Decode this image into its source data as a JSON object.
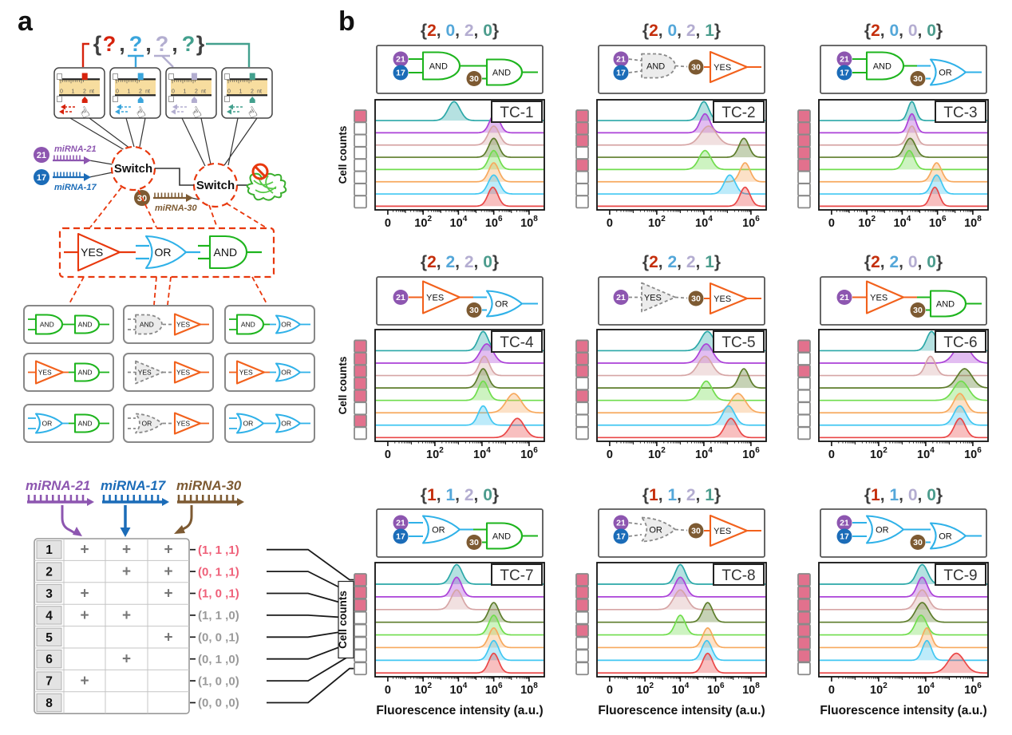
{
  "figure": {
    "panel_a_label": "a",
    "panel_b_label": "b"
  },
  "panel_a": {
    "placeholder_code": {
      "open": "{",
      "close": "}",
      "separator": ",",
      "items": [
        {
          "char": "?",
          "color": "#d6220c"
        },
        {
          "char": "?",
          "color": "#3aa5dc"
        },
        {
          "char": "?",
          "color": "#b3aed0"
        },
        {
          "char": "?",
          "color": "#43a08e"
        }
      ]
    },
    "rulers": {
      "numbers": [
        "0",
        "1",
        "2",
        "nt"
      ],
      "slider_colors": [
        "#d6220c",
        "#3aa5dc",
        "#b3aed0",
        "#43a08e"
      ],
      "slider_fracs": [
        0.7,
        0.7,
        0.64,
        0.7
      ],
      "hand_glyph": "☝",
      "band_color": "#f7dd9f"
    },
    "switch_label": "Switch",
    "mirna_inputs": [
      {
        "badge": "21",
        "label": "miRNA-21",
        "color": "#8d56b0"
      },
      {
        "badge": "17",
        "label": "miRNA-17",
        "color": "#1b6cb8"
      },
      {
        "badge": "30",
        "label": "miRNA-30",
        "color": "#7d5a32"
      }
    ],
    "gate_palette": {
      "YES": {
        "label": "YES",
        "color": "#e8380d"
      },
      "OR": {
        "label": "OR",
        "color": "#2fb1e8"
      },
      "AND": {
        "label": "AND",
        "color": "#1db41d"
      }
    },
    "small_gate_colors": {
      "YES": "#f2611c",
      "OR": "#2fb1e8",
      "AND": "#1db41d",
      "inactive": "#8a8a8a"
    },
    "combos": [
      {
        "g1": "AND",
        "g1_active": true,
        "g2": "AND"
      },
      {
        "g1": "AND",
        "g1_active": false,
        "g2": "YES"
      },
      {
        "g1": "AND",
        "g1_active": true,
        "g2": "OR"
      },
      {
        "g1": "YES",
        "g1_active": true,
        "g2": "AND"
      },
      {
        "g1": "YES",
        "g1_active": false,
        "g2": "YES"
      },
      {
        "g1": "YES",
        "g1_active": true,
        "g2": "OR"
      },
      {
        "g1": "OR",
        "g1_active": true,
        "g2": "AND"
      },
      {
        "g1": "OR",
        "g1_active": false,
        "g2": "YES"
      },
      {
        "g1": "OR",
        "g1_active": true,
        "g2": "OR"
      }
    ],
    "truth_table": {
      "col_headers": [
        "miRNA-21",
        "miRNA-17",
        "miRNA-30"
      ],
      "plus_symbol": "+",
      "highlight_color": "#ef6079",
      "normal_color": "#9a9a9a",
      "rows": [
        {
          "n": "1",
          "plus": [
            true,
            true,
            true
          ],
          "tuple": "(1, 1 ,1)",
          "highlight": true
        },
        {
          "n": "2",
          "plus": [
            false,
            true,
            true
          ],
          "tuple": "(0, 1 ,1)",
          "highlight": true
        },
        {
          "n": "3",
          "plus": [
            true,
            false,
            true
          ],
          "tuple": "(1, 0 ,1)",
          "highlight": true
        },
        {
          "n": "4",
          "plus": [
            true,
            true,
            false
          ],
          "tuple": "(1, 1 ,0)",
          "highlight": false
        },
        {
          "n": "5",
          "plus": [
            false,
            false,
            true
          ],
          "tuple": "(0, 0 ,1)",
          "highlight": false
        },
        {
          "n": "6",
          "plus": [
            false,
            true,
            false
          ],
          "tuple": "(0, 1 ,0)",
          "highlight": false
        },
        {
          "n": "7",
          "plus": [
            true,
            false,
            false
          ],
          "tuple": "(1, 0 ,0)",
          "highlight": false
        },
        {
          "n": "8",
          "plus": [
            false,
            false,
            false
          ],
          "tuple": "(0, 0 ,0)",
          "highlight": false
        }
      ]
    }
  },
  "chart_data": {
    "type": "ridgeline",
    "xlabel": "Fluorescence intensity (a.u.)",
    "ylabel": "Cell counts",
    "input_states": [
      "(1, 1 ,1)",
      "(0, 1 ,1)",
      "(1, 0 ,1)",
      "(1, 1 ,0)",
      "(0, 0 ,1)",
      "(0, 1 ,0)",
      "(1, 0 ,0)",
      "(0, 0 ,0)"
    ],
    "row_colors": [
      "#2ba8a8",
      "#ab42d8",
      "#d6a5a5",
      "#5d7d2b",
      "#70dd4d",
      "#f7a95e",
      "#41c7f2",
      "#ea4747"
    ],
    "code_digit_colors": [
      "#c42e0c",
      "#54a7d9",
      "#b4add1",
      "#4c9c8d"
    ],
    "code_punct_color": "#3f3f3f",
    "checkbox_on_color": "#e2718d",
    "panels": [
      {
        "id": "TC-1",
        "code": [
          "2",
          "0",
          "2",
          "0"
        ],
        "circuit": {
          "g1": "AND",
          "g1_active": true,
          "g1_inputs": [
            "21",
            "17"
          ],
          "g2": "AND"
        },
        "ticks": [
          "0",
          "10^2",
          "10^4",
          "10^6",
          "10^8"
        ],
        "peaks_exp": [
          3.75,
          6.05,
          6.0,
          6.0,
          6.0,
          6.0,
          6.0,
          5.95
        ],
        "widths": [
          1.2,
          1,
          1.1,
          1,
          1,
          1,
          1.1,
          1
        ],
        "on": [
          true,
          false,
          false,
          false,
          false,
          false,
          false,
          false
        ]
      },
      {
        "id": "TC-2",
        "code": [
          "2",
          "0",
          "2",
          "1"
        ],
        "circuit": {
          "g1": "AND",
          "g1_active": false,
          "g1_inputs": [
            "21",
            "17"
          ],
          "g2": "YES"
        },
        "ticks": [
          "0",
          "10^2",
          "10^4",
          "10^6"
        ],
        "peaks_exp": [
          4.0,
          4.05,
          4.2,
          5.7,
          4.05,
          5.75,
          5.1,
          5.75
        ],
        "widths": [
          1,
          1,
          1.6,
          1,
          1.2,
          1,
          1.1,
          1
        ],
        "on": [
          true,
          true,
          true,
          false,
          true,
          false,
          false,
          false
        ]
      },
      {
        "id": "TC-3",
        "code": [
          "2",
          "0",
          "0",
          "0"
        ],
        "circuit": {
          "g1": "AND",
          "g1_active": true,
          "g1_inputs": [
            "21",
            "17"
          ],
          "g2": "OR"
        },
        "ticks": [
          "0",
          "10^2",
          "10^4",
          "10^6",
          "10^8"
        ],
        "peaks_exp": [
          4.55,
          4.55,
          4.55,
          4.45,
          4.4,
          5.95,
          5.95,
          5.85
        ],
        "widths": [
          0.8,
          0.8,
          0.9,
          1.1,
          1,
          1,
          1,
          0.9
        ],
        "on": [
          true,
          true,
          true,
          true,
          true,
          false,
          false,
          false
        ]
      },
      {
        "id": "TC-4",
        "code": [
          "2",
          "2",
          "2",
          "0"
        ],
        "circuit": {
          "g1": "YES",
          "g1_active": true,
          "g1_inputs": [
            "21"
          ],
          "g2": "OR"
        },
        "ticks": [
          "0",
          "10^2",
          "10^4",
          "10^6"
        ],
        "peaks_exp": [
          4.05,
          4.2,
          4.1,
          4.05,
          4.05,
          5.35,
          4.05,
          5.5
        ],
        "widths": [
          1,
          1.3,
          1,
          1,
          1,
          1.5,
          1,
          1.4
        ],
        "on": [
          true,
          true,
          true,
          true,
          true,
          false,
          true,
          false
        ]
      },
      {
        "id": "TC-5",
        "code": [
          "2",
          "2",
          "2",
          "1"
        ],
        "circuit": {
          "g1": "YES",
          "g1_active": false,
          "g1_inputs": [
            "21"
          ],
          "g2": "YES"
        },
        "ticks": [
          "0",
          "10^2",
          "10^4",
          "10^6"
        ],
        "peaks_exp": [
          4.15,
          4.1,
          4.05,
          5.7,
          4.1,
          5.45,
          5.05,
          5.15
        ],
        "widths": [
          1.3,
          1.3,
          1.4,
          1,
          1.2,
          1.5,
          1.2,
          1.2
        ],
        "on": [
          true,
          true,
          true,
          false,
          true,
          false,
          false,
          false
        ]
      },
      {
        "id": "TC-6",
        "code": [
          "2",
          "2",
          "0",
          "0"
        ],
        "circuit": {
          "g1": "YES",
          "g1_active": true,
          "g1_inputs": [
            "21"
          ],
          "g2": "AND"
        },
        "ticks": [
          "0",
          "10^2",
          "10^4",
          "10^6"
        ],
        "peaks_exp": [
          4.25,
          5.55,
          4.2,
          5.65,
          5.5,
          5.45,
          5.45,
          5.45
        ],
        "widths": [
          1,
          1.6,
          1,
          1.5,
          1.5,
          1.2,
          1.2,
          1.1
        ],
        "on": [
          true,
          false,
          true,
          false,
          false,
          false,
          false,
          false
        ]
      },
      {
        "id": "TC-7",
        "code": [
          "1",
          "1",
          "2",
          "0"
        ],
        "circuit": {
          "g1": "OR",
          "g1_active": true,
          "g1_inputs": [
            "21",
            "17"
          ],
          "g2": "AND"
        },
        "ticks": [
          "0",
          "10^2",
          "10^4",
          "10^6",
          "10^8"
        ],
        "peaks_exp": [
          3.9,
          3.9,
          3.9,
          6.0,
          6.0,
          6.0,
          6.0,
          6.0
        ],
        "widths": [
          1.1,
          1,
          1.1,
          1,
          1,
          1,
          1,
          1
        ],
        "on": [
          true,
          true,
          true,
          false,
          false,
          false,
          false,
          false
        ]
      },
      {
        "id": "TC-8",
        "code": [
          "1",
          "1",
          "2",
          "1"
        ],
        "circuit": {
          "g1": "OR",
          "g1_active": false,
          "g1_inputs": [
            "21",
            "17"
          ],
          "g2": "YES"
        },
        "ticks": [
          "0",
          "10^2",
          "10^4",
          "10^6",
          "10^8"
        ],
        "peaks_exp": [
          4.0,
          4.0,
          4.0,
          5.55,
          4.0,
          5.55,
          5.5,
          5.55
        ],
        "widths": [
          1,
          1.1,
          1.3,
          1,
          1,
          1,
          1,
          1
        ],
        "on": [
          true,
          true,
          true,
          false,
          true,
          false,
          false,
          false
        ]
      },
      {
        "id": "TC-9",
        "code": [
          "1",
          "1",
          "0",
          "0"
        ],
        "circuit": {
          "g1": "OR",
          "g1_active": true,
          "g1_inputs": [
            "21",
            "17"
          ],
          "g2": "OR"
        },
        "ticks": [
          "0",
          "10^2",
          "10^4",
          "10^6"
        ],
        "peaks_exp": [
          3.85,
          3.85,
          3.85,
          3.85,
          3.8,
          4.05,
          4.05,
          5.3
        ],
        "widths": [
          1.1,
          1,
          1.2,
          1.3,
          1.1,
          0.9,
          0.9,
          1.6
        ],
        "on": [
          true,
          true,
          true,
          true,
          true,
          true,
          true,
          false
        ]
      }
    ]
  }
}
